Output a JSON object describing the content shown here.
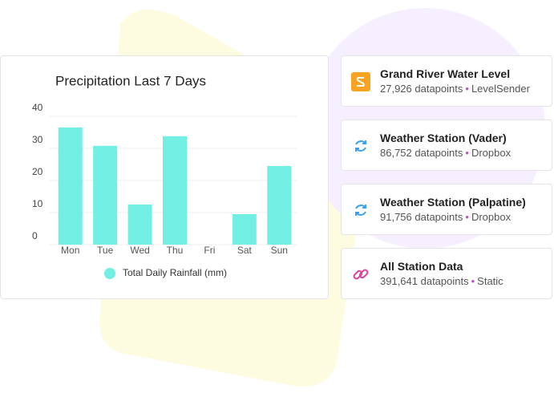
{
  "chart_data": {
    "type": "bar",
    "title": "Precipitation Last 7 Days",
    "categories": [
      "Mon",
      "Tue",
      "Wed",
      "Thu",
      "Fri",
      "Sat",
      "Sun"
    ],
    "series": [
      {
        "name": "Total Daily Rainfall (mm)",
        "color": "#72efe2",
        "values": [
          36.5,
          30.8,
          12.5,
          33.8,
          0,
          9.5,
          24.5
        ]
      }
    ],
    "ylim": [
      0,
      40
    ],
    "yticks": [
      0,
      10,
      20,
      30,
      40
    ],
    "grid": true
  },
  "cards": [
    {
      "title": "Grand River Water Level",
      "count": "27,926 datapoints",
      "source": "LevelSender"
    },
    {
      "title": "Weather Station (Vader)",
      "count": "86,752 datapoints",
      "source": "Dropbox"
    },
    {
      "title": "Weather Station (Palpatine)",
      "count": "91,756 datapoints",
      "source": "Dropbox"
    },
    {
      "title": "All Station Data",
      "count": "391,641 datapoints",
      "source": "Static"
    }
  ]
}
